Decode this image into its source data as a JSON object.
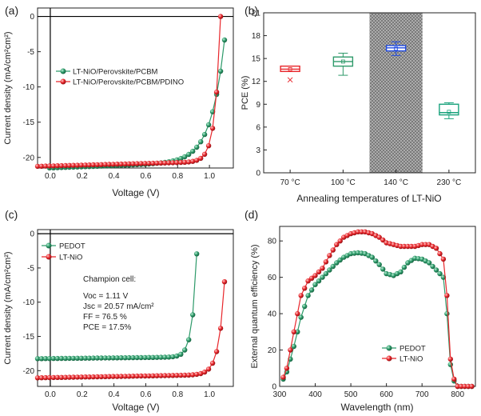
{
  "colors": {
    "green": "#2e9a6a",
    "red": "#e8262b",
    "axis": "#222222",
    "hatch": "#8c8c8c"
  },
  "chart_data": [
    {
      "panel": "(a)",
      "type": "line",
      "xlabel": "Voltage (V)",
      "ylabel": "Current density (mA/cm²cm²)",
      "xlim": [
        -0.08,
        1.15
      ],
      "ylim": [
        -21.5,
        1.2
      ],
      "xticks": [
        "0.0",
        "0.2",
        "0.4",
        "0.6",
        "0.8",
        "1.0"
      ],
      "xtick_values": [
        0.0,
        0.2,
        0.4,
        0.6,
        0.8,
        1.0
      ],
      "yticks": [
        "0",
        "-5",
        "-10",
        "-15",
        "-20"
      ],
      "ytick_values": [
        0,
        -5,
        -10,
        -15,
        -20
      ],
      "legend_position": "middle-left",
      "series": [
        {
          "name": "LT-NiO/Perovskite/PCBM",
          "color": "green",
          "model": {
            "jsc": 20.6,
            "voc": 1.11,
            "slope": 0.8,
            "n": 0.085
          }
        },
        {
          "name": "LT-NiO/Perovskite/PCBM/PDINO",
          "color": "red",
          "model": {
            "jsc": 20.57,
            "voc": 1.07,
            "slope": 0.6,
            "n": 0.034
          }
        }
      ]
    },
    {
      "panel": "(b)",
      "type": "box",
      "title": "",
      "xlabel": "Annealing temperatures of LT-NiO",
      "ylabel": "PCE (%)",
      "ylim": [
        0,
        21
      ],
      "yticks": [
        "0",
        "3",
        "6",
        "9",
        "12",
        "15",
        "18",
        "21"
      ],
      "ytick_values": [
        0,
        3,
        6,
        9,
        12,
        15,
        18,
        21
      ],
      "categories": [
        "70 °C",
        "100 °C",
        "140 °C",
        "230 °C"
      ],
      "highlight_category": "140 °C",
      "boxes": [
        {
          "category": "70 °C",
          "color": "red",
          "q1": 13.3,
          "median": 13.6,
          "q3": 14.0,
          "min": 13.3,
          "max": 14.0,
          "mean": 13.6,
          "outliers": [
            12.2
          ]
        },
        {
          "category": "100 °C",
          "color": "green",
          "q1": 14.0,
          "median": 14.6,
          "q3": 15.2,
          "min": 12.8,
          "max": 15.7,
          "mean": 14.6,
          "outliers": []
        },
        {
          "category": "140 °C",
          "color": "blue",
          "q1": 16.0,
          "median": 16.4,
          "q3": 16.7,
          "min": 15.4,
          "max": 17.2,
          "mean": 16.3,
          "outliers": []
        },
        {
          "category": "230 °C",
          "color": "teal",
          "q1": 7.6,
          "median": 7.9,
          "q3": 9.0,
          "min": 7.1,
          "max": 9.2,
          "mean": 8.0,
          "outliers": []
        }
      ]
    },
    {
      "panel": "(c)",
      "type": "line",
      "xlabel": "Voltage (V)",
      "ylabel": "Current density (mA/cm²cm²)",
      "xlim": [
        -0.08,
        1.15
      ],
      "ylim": [
        -22.3,
        0.6
      ],
      "xticks": [
        "0.0",
        "0.2",
        "0.4",
        "0.6",
        "0.8",
        "1.0"
      ],
      "xtick_values": [
        0.0,
        0.2,
        0.4,
        0.6,
        0.8,
        1.0
      ],
      "yticks": [
        "0",
        "-5",
        "-10",
        "-15",
        "-20"
      ],
      "ytick_values": [
        0,
        -5,
        -10,
        -15,
        -20
      ],
      "legend_position": "top-left",
      "series": [
        {
          "name": "PEDOT",
          "color": "green",
          "model": {
            "jsc": 18.0,
            "voc": 0.925,
            "slope": 0.25,
            "n": 0.028
          }
        },
        {
          "name": "LT-NiO",
          "color": "red",
          "model": {
            "jsc": 20.57,
            "voc": 1.11,
            "slope": 0.4,
            "n": 0.036
          }
        }
      ],
      "annotation": [
        "Champion cell:",
        "Voc = 1.11 V",
        "Jsc = 20.57 mA/cm²",
        "FF = 76.5 %",
        "PCE = 17.5%"
      ]
    },
    {
      "panel": "(d)",
      "type": "line",
      "xlabel": "Wavelength (nm)",
      "ylabel": "External quantum efficiency (%)",
      "xlim": [
        300,
        850
      ],
      "ylim": [
        0,
        88
      ],
      "xticks": [
        "300",
        "400",
        "500",
        "600",
        "700",
        "800"
      ],
      "xtick_values": [
        300,
        400,
        500,
        600,
        700,
        800
      ],
      "yticks": [
        "0",
        "20",
        "40",
        "60",
        "80"
      ],
      "ytick_values": [
        0,
        20,
        40,
        60,
        80
      ],
      "legend_position": "bottom-right",
      "series": [
        {
          "name": "PEDOT",
          "color": "green",
          "x": [
            300,
            320,
            340,
            360,
            380,
            400,
            420,
            440,
            460,
            480,
            500,
            520,
            540,
            560,
            580,
            600,
            620,
            640,
            660,
            680,
            700,
            720,
            740,
            760,
            770,
            780,
            790,
            800,
            820,
            850
          ],
          "y": [
            0,
            8,
            22,
            38,
            50,
            56,
            60,
            64,
            68,
            71,
            73,
            73.5,
            73,
            71,
            67,
            62,
            61,
            63,
            68,
            70.5,
            70,
            68,
            64,
            60,
            40,
            12,
            3,
            0,
            0,
            0
          ]
        },
        {
          "name": "LT-NiO",
          "color": "red",
          "x": [
            300,
            320,
            340,
            360,
            380,
            400,
            420,
            440,
            460,
            480,
            500,
            520,
            540,
            560,
            580,
            600,
            620,
            640,
            660,
            680,
            700,
            720,
            740,
            760,
            770,
            780,
            790,
            800,
            820,
            850
          ],
          "y": [
            0,
            10,
            30,
            50,
            58,
            61,
            65,
            72,
            78,
            82,
            84,
            85,
            85,
            84,
            82,
            79,
            78,
            77,
            77,
            77,
            78,
            78,
            76,
            70,
            50,
            15,
            4,
            0,
            0,
            0
          ]
        }
      ]
    }
  ]
}
